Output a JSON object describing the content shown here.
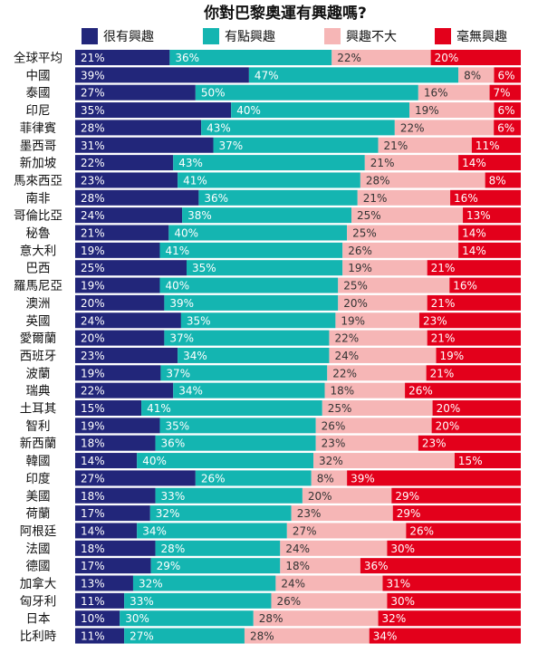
{
  "chart_data": {
    "type": "bar",
    "stacked": true,
    "orientation": "horizontal",
    "percent_stacked": true,
    "title": "你對巴黎奧運有興趣嗎?",
    "legend_position": "top",
    "colors": [
      "#22267a",
      "#14b5b1",
      "#f6b6b6",
      "#e3001b"
    ],
    "value_text_colors": [
      "#ffffff",
      "#ffffff",
      "#333333",
      "#ffffff"
    ],
    "categories": [
      "全球平均",
      "中國",
      "泰國",
      "印尼",
      "菲律賓",
      "墨西哥",
      "新加坡",
      "馬來西亞",
      "南非",
      "哥倫比亞",
      "秘魯",
      "意大利",
      "巴西",
      "羅馬尼亞",
      "澳洲",
      "英國",
      "愛爾蘭",
      "西班牙",
      "波蘭",
      "瑞典",
      "土耳其",
      "智利",
      "新西蘭",
      "韓國",
      "印度",
      "美國",
      "荷蘭",
      "阿根廷",
      "法國",
      "德國",
      "加拿大",
      "匈牙利",
      "日本",
      "比利時"
    ],
    "series": [
      {
        "name": "很有興趣",
        "values": [
          21,
          39,
          27,
          35,
          28,
          31,
          22,
          23,
          28,
          24,
          21,
          19,
          25,
          19,
          20,
          24,
          20,
          23,
          19,
          22,
          15,
          19,
          18,
          14,
          27,
          18,
          17,
          14,
          18,
          17,
          13,
          11,
          10,
          11
        ]
      },
      {
        "name": "有點興趣",
        "values": [
          36,
          47,
          50,
          40,
          43,
          37,
          43,
          41,
          36,
          38,
          40,
          41,
          35,
          40,
          39,
          35,
          37,
          34,
          37,
          34,
          41,
          35,
          36,
          40,
          26,
          33,
          32,
          34,
          28,
          29,
          32,
          33,
          30,
          27
        ]
      },
      {
        "name": "興趣不大",
        "values": [
          22,
          8,
          16,
          19,
          22,
          21,
          21,
          28,
          21,
          25,
          25,
          26,
          19,
          25,
          20,
          19,
          22,
          24,
          22,
          18,
          25,
          26,
          23,
          32,
          8,
          20,
          23,
          27,
          24,
          18,
          24,
          26,
          28,
          28
        ]
      },
      {
        "name": "毫無興趣",
        "values": [
          20,
          6,
          7,
          6,
          6,
          11,
          14,
          8,
          16,
          13,
          14,
          14,
          21,
          16,
          21,
          23,
          21,
          19,
          21,
          26,
          20,
          20,
          23,
          15,
          39,
          29,
          29,
          26,
          30,
          36,
          31,
          30,
          32,
          34
        ]
      }
    ]
  }
}
